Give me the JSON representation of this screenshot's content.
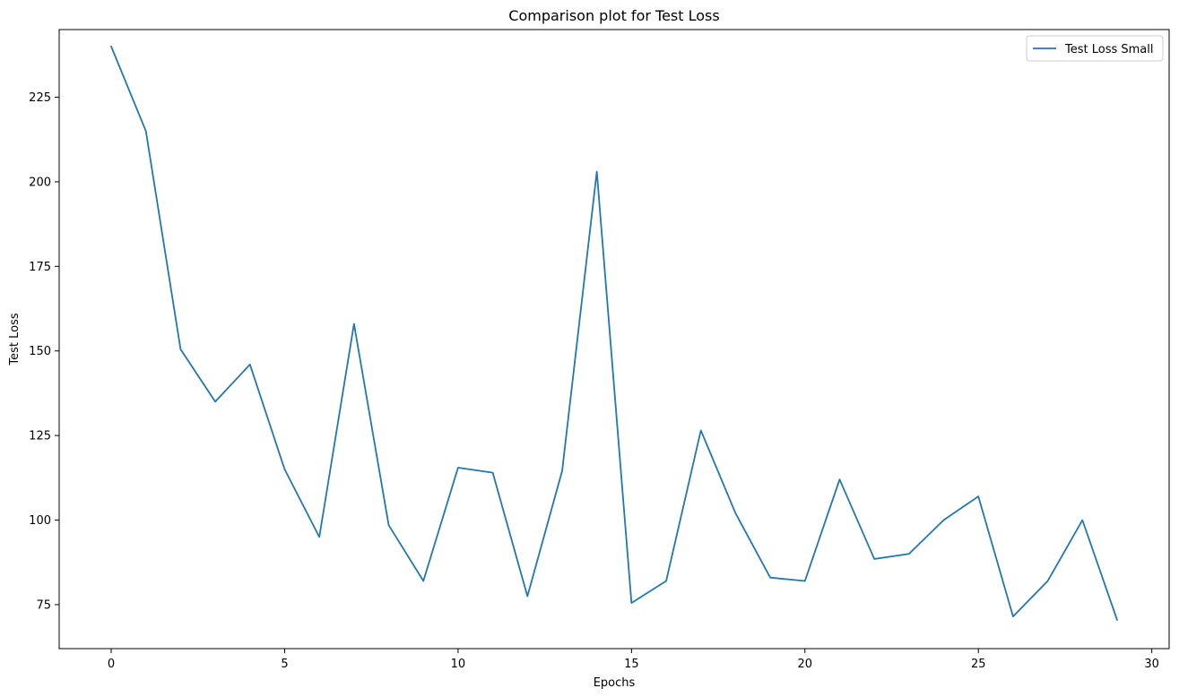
{
  "chart_data": {
    "type": "line",
    "title": "Comparison plot for Test Loss",
    "xlabel": "Epochs",
    "ylabel": "Test Loss",
    "xlim": [
      -1.5,
      30.5
    ],
    "ylim": [
      62,
      245
    ],
    "xticks": [
      0,
      5,
      10,
      15,
      20,
      25,
      30
    ],
    "yticks": [
      75,
      100,
      125,
      150,
      175,
      200,
      225
    ],
    "grid": false,
    "legend_position": "top-right",
    "series": [
      {
        "name": "Test Loss Small",
        "color": "#1f77b4",
        "x": [
          0,
          1,
          2,
          3,
          4,
          5,
          6,
          7,
          8,
          9,
          10,
          11,
          12,
          13,
          14,
          15,
          16,
          17,
          18,
          19,
          20,
          21,
          22,
          23,
          24,
          25,
          26,
          27,
          28,
          29
        ],
        "y": [
          240,
          215,
          150.5,
          135,
          146,
          115,
          95,
          158,
          98.5,
          82,
          115.5,
          114,
          77.5,
          114.5,
          203,
          75.5,
          82,
          126.5,
          102,
          83,
          82,
          112,
          88.5,
          90,
          100,
          107,
          71.5,
          82,
          100,
          70.5
        ]
      }
    ]
  }
}
